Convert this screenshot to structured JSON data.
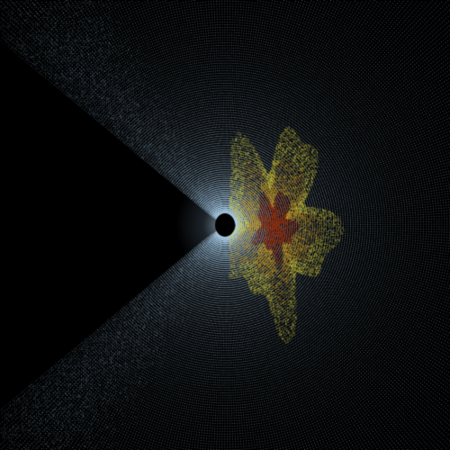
{
  "image": {
    "kind": "particle-mesh-render",
    "background_color": "#000000",
    "mesh_color": "#9ec6e6",
    "mesh_color_bright": "#d9f1ff",
    "hot_region_colors": [
      "#e0d23a",
      "#c89a22",
      "#a03a12",
      "#7a1f0c"
    ],
    "center_body_color": "#000000",
    "depicted_elements": [
      "radial-cone-mesh-upper",
      "radial-cone-mesh-lower",
      "radial-fan-mesh-right",
      "dark-wedge-left",
      "central-black-body",
      "turbulent-particle-cloud"
    ]
  }
}
